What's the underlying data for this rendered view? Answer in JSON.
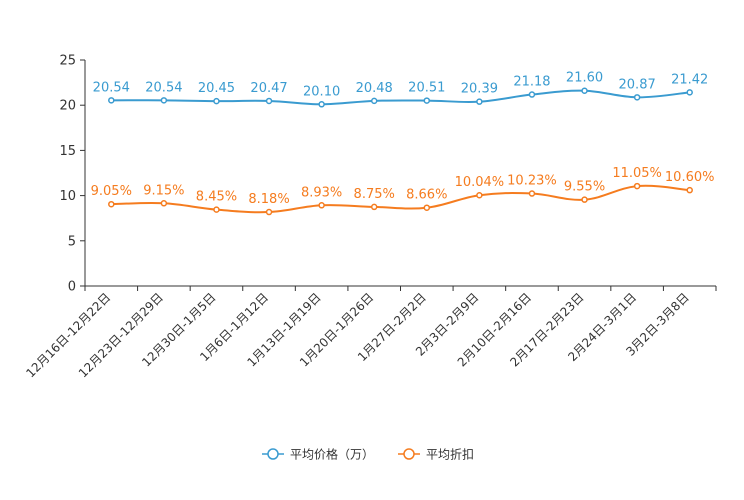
{
  "chart_data": {
    "type": "line",
    "title": "",
    "xlabel": "",
    "ylabel": "",
    "ylim": [
      0,
      25
    ],
    "yticks": [
      0,
      5,
      10,
      15,
      20,
      25
    ],
    "categories": [
      "12月16日-12月22日",
      "12月23日-12月29日",
      "12月30日-1月5日",
      "1月6日-1月12日",
      "1月13日-1月19日",
      "1月20日-1月26日",
      "1月27日-2月2日",
      "2月3日-2月9日",
      "2月10日-2月16日",
      "2月17日-2月23日",
      "2月24日-3月1日",
      "3月2日-3月8日"
    ],
    "series": [
      {
        "name": "平均价格（万）",
        "color": "#3a9bd0",
        "values": [
          20.54,
          20.54,
          20.45,
          20.47,
          20.1,
          20.48,
          20.51,
          20.39,
          21.18,
          21.6,
          20.87,
          21.42
        ],
        "labels": [
          "20.54",
          "20.54",
          "20.45",
          "20.47",
          "20.10",
          "20.48",
          "20.51",
          "20.39",
          "21.18",
          "21.60",
          "20.87",
          "21.42"
        ]
      },
      {
        "name": "平均折扣",
        "color": "#f57c1f",
        "values": [
          9.05,
          9.15,
          8.45,
          8.18,
          8.93,
          8.75,
          8.66,
          10.04,
          10.23,
          9.55,
          11.05,
          10.6
        ],
        "labels": [
          "9.05%",
          "9.15%",
          "8.45%",
          "8.18%",
          "8.93%",
          "8.75%",
          "8.66%",
          "10.04%",
          "10.23%",
          "9.55%",
          "11.05%",
          "10.60%"
        ]
      }
    ],
    "legend_position": "bottom-center",
    "grid": false
  }
}
